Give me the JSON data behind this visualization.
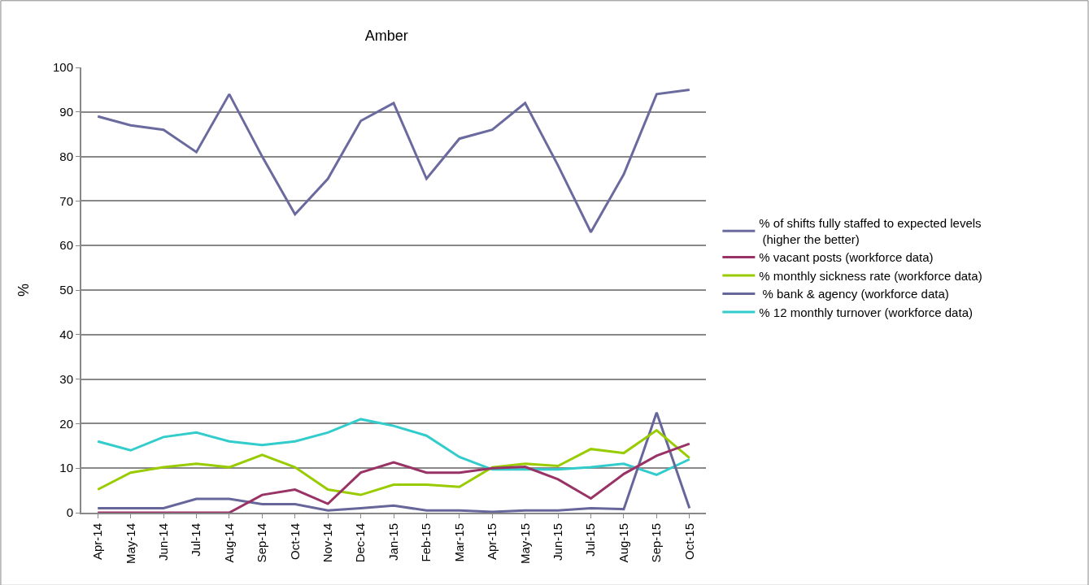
{
  "chart_data": {
    "type": "line",
    "title": "Amber",
    "ylabel": "%",
    "categories": [
      "Apr-14",
      "May-14",
      "Jun-14",
      "Jul-14",
      "Aug-14",
      "Sep-14",
      "Oct-14",
      "Nov-14",
      "Dec-14",
      "Jan-15",
      "Feb-15",
      "Mar-15",
      "Apr-15",
      "May-15",
      "Jun-15",
      "Jul-15",
      "Aug-15",
      "Sep-15",
      "Oct-15"
    ],
    "series": [
      {
        "name": "% of shifts fully staffed to expected levels (higher the better)",
        "color": "#6a6a9e",
        "values": [
          89,
          87,
          86,
          81,
          94,
          80,
          67,
          75,
          88,
          92,
          75,
          84,
          86,
          92,
          78,
          63,
          76,
          94,
          95
        ]
      },
      {
        "name": "% vacant posts (workforce data)",
        "color": "#993366",
        "values": [
          0,
          0,
          0,
          0,
          0,
          4,
          5.2,
          2,
          9,
          11.3,
          9,
          9,
          10,
          10.3,
          7.5,
          3.2,
          8.7,
          12.8,
          15.5
        ]
      },
      {
        "name": "% monthly sickness rate (workforce data)",
        "color": "#99cc00",
        "values": [
          5.2,
          9,
          10.2,
          11,
          10.2,
          13,
          10.2,
          5.2,
          4,
          6.3,
          6.3,
          5.8,
          10.2,
          11,
          10.5,
          14.3,
          13.4,
          18.5,
          12.3
        ]
      },
      {
        "name": " % bank & agency (workforce data)",
        "color": "#66669a",
        "values": [
          1,
          1,
          1,
          3.1,
          3.1,
          1.9,
          1.9,
          0.5,
          1,
          1.6,
          0.5,
          0.5,
          0.2,
          0.5,
          0.5,
          1,
          0.8,
          22.5,
          1
        ]
      },
      {
        "name": "% 12 monthly turnover (workforce data)",
        "color": "#33cccc",
        "values": [
          16,
          14,
          17,
          18,
          16,
          15.2,
          16,
          18,
          21,
          19.5,
          17.3,
          12.5,
          9.7,
          9.7,
          9.7,
          10.2,
          11,
          8.5,
          12
        ]
      }
    ],
    "ylim": [
      0,
      100
    ],
    "yticks": [
      0,
      10,
      20,
      30,
      40,
      50,
      60,
      70,
      80,
      90,
      100
    ],
    "grid": "y",
    "legend": "right",
    "marker": "none",
    "line_style": "solid"
  }
}
